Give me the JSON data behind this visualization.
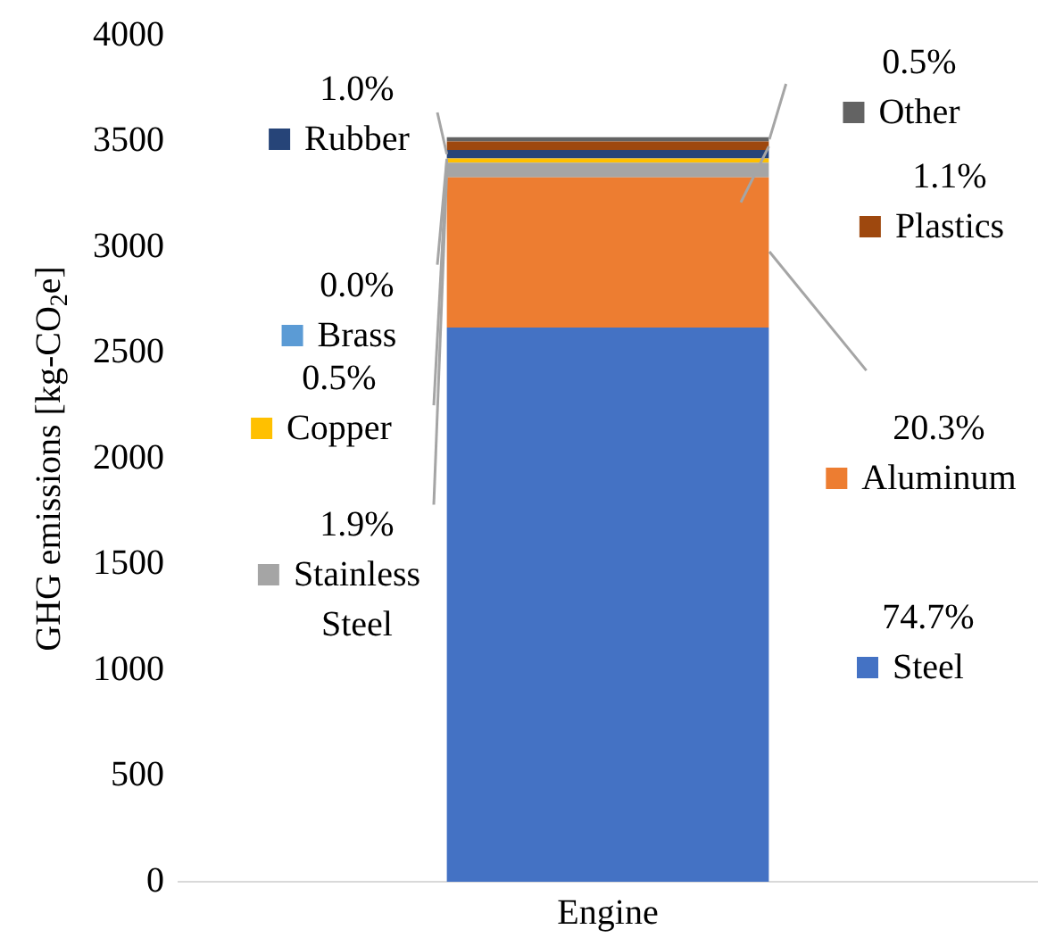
{
  "chart_data": {
    "type": "bar",
    "stacked": true,
    "ylabel": "GHG emissions [kg-CO$_{2}$e]",
    "categories": [
      "Engine"
    ],
    "ylim": [
      0,
      4000
    ],
    "yticks": [
      0,
      500,
      1000,
      1500,
      2000,
      2500,
      3000,
      3500,
      4000
    ],
    "grid": false,
    "legend": "left",
    "annotations": [
      "74.7%",
      "20.3%",
      "1.9%",
      "0.5%",
      "0.0%",
      "1.0%",
      "1.1%",
      "0.5%"
    ],
    "series": [
      {
        "name": "Steel",
        "color": "#4472c4",
        "values": [
          2620
        ]
      },
      {
        "name": "Aluminum",
        "color": "#ed7d31",
        "values": [
          710
        ]
      },
      {
        "name": "Stainless Steel",
        "color": "#a5a5a5",
        "values": [
          70
        ]
      },
      {
        "name": "Copper",
        "color": "#ffc000",
        "values": [
          20
        ]
      },
      {
        "name": "Brass",
        "color": "#5b9bd5",
        "values": [
          0
        ]
      },
      {
        "name": "Rubber",
        "color": "#264478",
        "values": [
          40
        ]
      },
      {
        "name": "Plastics",
        "color": "#9e480e",
        "values": [
          40
        ]
      },
      {
        "name": "Other",
        "color": "#636363",
        "values": [
          20
        ]
      }
    ]
  }
}
